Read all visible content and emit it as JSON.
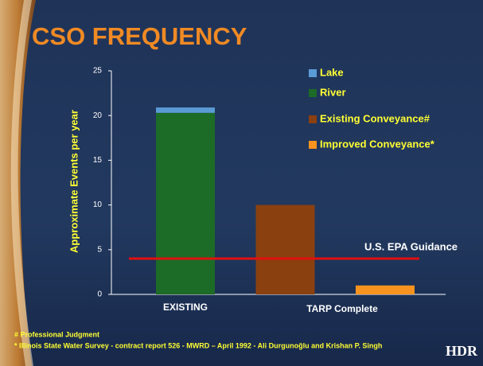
{
  "chart_data": {
    "type": "stacked-bar",
    "title": "CSO FREQUENCY",
    "y_axis_label": "Approximate Events per year",
    "categories": [
      "EXISTING",
      null,
      null
    ],
    "x_group_label": "TARP Complete",
    "series": [
      {
        "name": "Lake",
        "color": "#5b9bd5",
        "values": [
          0.6,
          0,
          0
        ]
      },
      {
        "name": "River",
        "color": "#1c6b26",
        "values": [
          20.3,
          0,
          0
        ]
      },
      {
        "name": "Existing Conveyance#",
        "color": "#8b4010",
        "values": [
          0,
          10,
          0
        ]
      },
      {
        "name": "Improved Conveyance*",
        "color": "#f7931e",
        "values": [
          0,
          0,
          1
        ]
      }
    ],
    "ylim": [
      0,
      25
    ],
    "yticks": [
      0,
      5,
      10,
      15,
      20,
      25
    ],
    "reference_line": {
      "label": "U.S. EPA Guidance",
      "value": 4,
      "color": "#e01010"
    }
  },
  "footnotes": [
    "# Professional Judgment",
    "* Illinois State Water Survey - contract report 526 - MWRD – April 1992 - Ali Durgunoğlu and Krishan P. Singh"
  ],
  "logo": "HDR"
}
